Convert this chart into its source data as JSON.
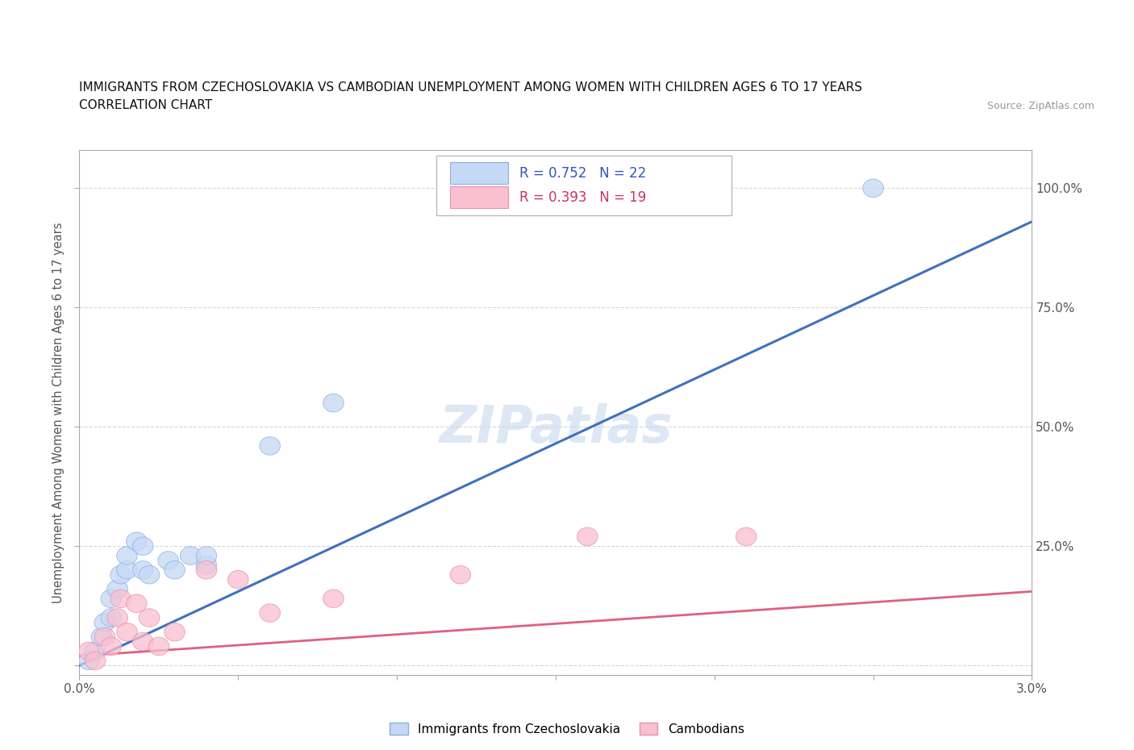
{
  "title_line1": "IMMIGRANTS FROM CZECHOSLOVAKIA VS CAMBODIAN UNEMPLOYMENT AMONG WOMEN WITH CHILDREN AGES 6 TO 17 YEARS",
  "title_line2": "CORRELATION CHART",
  "source": "Source: ZipAtlas.com",
  "ylabel": "Unemployment Among Women with Children Ages 6 to 17 years",
  "xlim": [
    0.0,
    0.03
  ],
  "ylim": [
    -0.02,
    1.08
  ],
  "xticks": [
    0.0,
    0.005,
    0.01,
    0.015,
    0.02,
    0.025,
    0.03
  ],
  "xticklabels": [
    "0.0%",
    "",
    "",
    "",
    "",
    "",
    "3.0%"
  ],
  "yticks": [
    0.0,
    0.25,
    0.5,
    0.75,
    1.0
  ],
  "yticklabels": [
    "",
    "25.0%",
    "50.0%",
    "75.0%",
    "100.0%"
  ],
  "color_blue_fill": "#c5d8f5",
  "color_blue_edge": "#8ab0e0",
  "color_pink_fill": "#f9c0d0",
  "color_pink_edge": "#e890b0",
  "color_blue_line": "#4070c0",
  "color_pink_line": "#e06080",
  "color_text_blue": "#3355bb",
  "color_text_pink": "#cc3366",
  "watermark": "ZIPatlas",
  "blue_scatter_x": [
    0.0003,
    0.0005,
    0.0007,
    0.0008,
    0.001,
    0.001,
    0.0012,
    0.0013,
    0.0015,
    0.0015,
    0.0018,
    0.002,
    0.002,
    0.0022,
    0.0028,
    0.003,
    0.0035,
    0.004,
    0.004,
    0.006,
    0.008,
    0.025
  ],
  "blue_scatter_y": [
    0.01,
    0.03,
    0.06,
    0.09,
    0.1,
    0.14,
    0.16,
    0.19,
    0.2,
    0.23,
    0.26,
    0.2,
    0.25,
    0.19,
    0.22,
    0.2,
    0.23,
    0.21,
    0.23,
    0.46,
    0.55,
    1.0
  ],
  "pink_scatter_x": [
    0.0003,
    0.0005,
    0.0008,
    0.001,
    0.0012,
    0.0013,
    0.0015,
    0.0018,
    0.002,
    0.0022,
    0.0025,
    0.003,
    0.004,
    0.005,
    0.006,
    0.008,
    0.012,
    0.016,
    0.021
  ],
  "pink_scatter_y": [
    0.03,
    0.01,
    0.06,
    0.04,
    0.1,
    0.14,
    0.07,
    0.13,
    0.05,
    0.1,
    0.04,
    0.07,
    0.2,
    0.18,
    0.11,
    0.14,
    0.19,
    0.27,
    0.27
  ],
  "blue_line_x": [
    0.0,
    0.03
  ],
  "blue_line_y": [
    0.0,
    0.93
  ],
  "pink_line_x": [
    0.0,
    0.03
  ],
  "pink_line_y": [
    0.02,
    0.155
  ]
}
